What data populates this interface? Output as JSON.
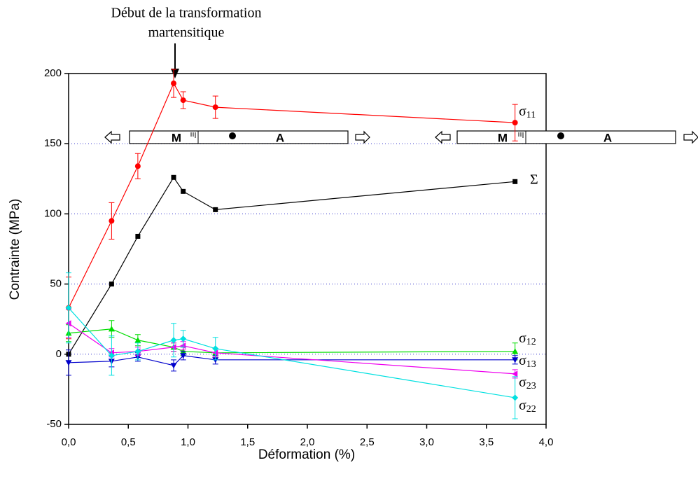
{
  "chart_data": {
    "type": "line",
    "annotation": [
      "Début de la transformation",
      "martensitique"
    ],
    "x_label": "Déformation (%)",
    "y_label": "Contrainte (MPa)",
    "x": [
      0,
      0.36,
      0.58,
      0.88,
      0.96,
      1.23,
      3.74
    ],
    "series": [
      {
        "name": "Σ",
        "color": "#000000",
        "marker": "square",
        "values": [
          0,
          50,
          84,
          126,
          116,
          103,
          123
        ]
      },
      {
        "name": "σ11",
        "color": "#ff0000",
        "marker": "circle",
        "values": [
          33,
          95,
          134,
          193,
          181,
          176,
          165
        ],
        "errors": [
          22,
          13,
          9,
          10,
          6,
          8,
          13
        ]
      },
      {
        "name": "σ12",
        "color": "#00dd00",
        "marker": "triangle-up",
        "values": [
          15,
          18,
          10,
          5,
          2,
          1,
          2
        ],
        "errors": [
          6,
          6,
          4,
          3,
          3,
          3,
          6
        ]
      },
      {
        "name": "σ13",
        "color": "#0000cc",
        "marker": "triangle-down",
        "values": [
          -6,
          -5,
          -2,
          -8,
          -1,
          -4,
          -4
        ],
        "errors": [
          9,
          4,
          3,
          4,
          3,
          3,
          3
        ]
      },
      {
        "name": "σ23",
        "color": "#ee00ee",
        "marker": "triangle-left",
        "values": [
          22,
          1,
          2,
          5,
          6,
          1,
          -14
        ],
        "errors": [
          10,
          3,
          3,
          3,
          3,
          3,
          3
        ]
      },
      {
        "name": "σ22",
        "color": "#00e0e0",
        "marker": "diamond",
        "values": [
          33,
          -1,
          2,
          10,
          11,
          4,
          -31
        ],
        "errors": [
          25,
          14,
          6,
          12,
          6,
          8,
          15
        ]
      }
    ],
    "xlim": [
      0,
      4
    ],
    "ylim": [
      -50,
      200
    ],
    "xticks": [
      {
        "value": 0,
        "label": "0,0"
      },
      {
        "value": 0.5,
        "label": "0,5"
      },
      {
        "value": 1,
        "label": "1,0"
      },
      {
        "value": 1.5,
        "label": "1,5"
      },
      {
        "value": 2,
        "label": "2,0"
      },
      {
        "value": 2.5,
        "label": "2,5"
      },
      {
        "value": 3,
        "label": "3,0"
      },
      {
        "value": 3.5,
        "label": "3,5"
      },
      {
        "value": 4,
        "label": "4,0"
      }
    ],
    "yticks": [
      -50,
      0,
      50,
      100,
      150,
      200
    ],
    "grid_values": [
      0,
      50,
      100,
      150
    ],
    "grid_color": "#3333cc",
    "insets": [
      {
        "left": "M",
        "right": "A"
      },
      {
        "left": "M",
        "right": "A"
      }
    ]
  }
}
